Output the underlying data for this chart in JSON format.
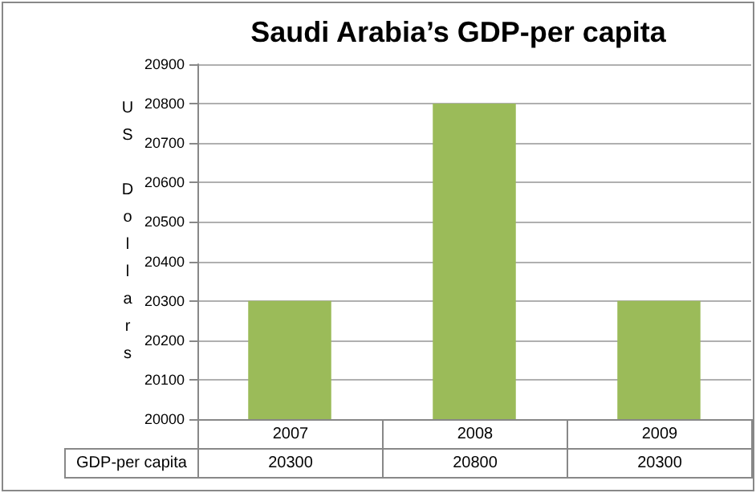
{
  "chart_data": {
    "type": "bar",
    "title": "Saudi Arabia’s GDP-per capita",
    "ylabel": "US Dollars",
    "categories": [
      "2007",
      "2008",
      "2009"
    ],
    "series": [
      {
        "name": "GDP-per capita",
        "color": "#9bbb59",
        "values": [
          20300,
          20800,
          20300
        ]
      }
    ],
    "ylim": [
      20000,
      20900
    ],
    "yticks": [
      20000,
      20100,
      20200,
      20300,
      20400,
      20500,
      20600,
      20700,
      20800,
      20900
    ],
    "grid": "y",
    "data_labels": true
  }
}
